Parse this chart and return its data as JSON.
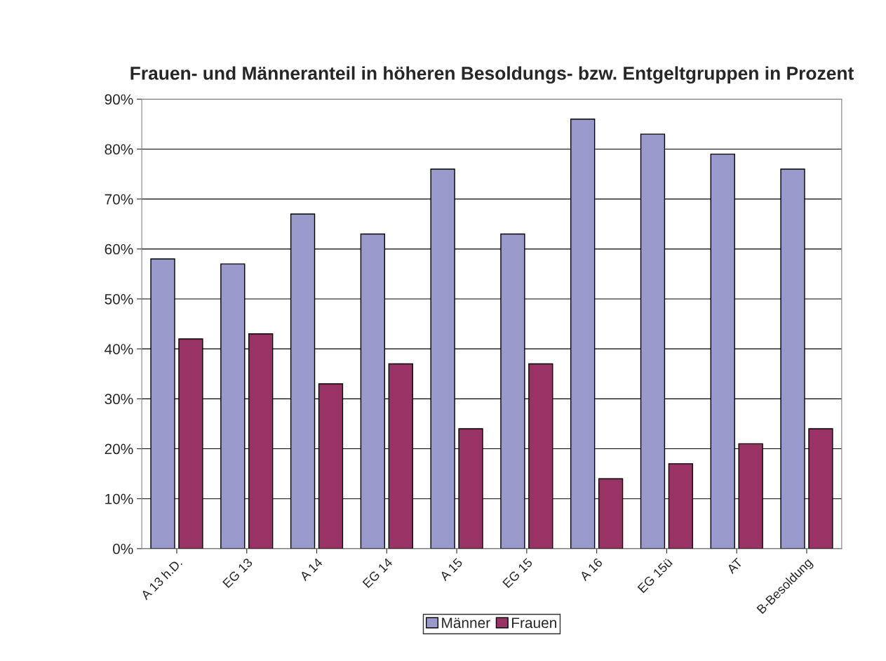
{
  "chart_data": {
    "type": "bar",
    "title": "Frauen- und Männeranteil in höheren Besoldungs- bzw. Entgeltgruppen in Prozent",
    "categories": [
      "A 13 h.D.",
      "EG 13",
      "A 14",
      "EG 14",
      "A 15",
      "EG 15",
      "A 16",
      "EG 15ü",
      "AT",
      "B-Besoldung"
    ],
    "series": [
      {
        "name": "Männer",
        "color": "#9999cc",
        "values": [
          58,
          57,
          67,
          63,
          76,
          63,
          86,
          83,
          79,
          76
        ]
      },
      {
        "name": "Frauen",
        "color": "#993366",
        "values": [
          42,
          43,
          33,
          37,
          24,
          37,
          14,
          17,
          21,
          24
        ]
      }
    ],
    "ylim": [
      0,
      90
    ],
    "yticks": [
      {
        "value": 0,
        "label": "0%"
      },
      {
        "value": 10,
        "label": "10%"
      },
      {
        "value": 20,
        "label": "20%"
      },
      {
        "value": 30,
        "label": "30%"
      },
      {
        "value": 40,
        "label": "40%"
      },
      {
        "value": 50,
        "label": "50%"
      },
      {
        "value": 60,
        "label": "60%"
      },
      {
        "value": 70,
        "label": "70%"
      },
      {
        "value": 80,
        "label": "80%"
      },
      {
        "value": 90,
        "label": "90%"
      }
    ],
    "grid": "y",
    "legend": "bottom"
  }
}
